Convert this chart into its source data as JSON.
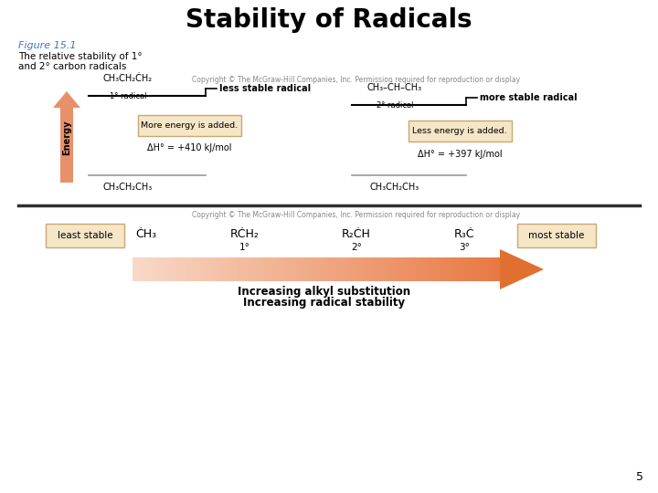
{
  "title": "Stability of Radicals",
  "title_fontsize": 20,
  "title_fontweight": "bold",
  "bg_color": "#ffffff",
  "figure_caption": "Figure 15.1",
  "figure_caption_color": "#4472C4",
  "figure_desc_line1": "The relative stability of 1°",
  "figure_desc_line2": "and 2° carbon radicals",
  "copyright_text": "Copyright © The McGraw-Hill Companies, Inc. Permission required for reproduction or display",
  "copyright_text2": "Copyright © The McGraw-Hill Companies, Inc. Permission required for reproduction or display",
  "arrow_color": "#E8906A",
  "box_fill": "#F5E6C8",
  "box_edge": "#C8A870",
  "separator_color": "#303030",
  "page_number": "5"
}
